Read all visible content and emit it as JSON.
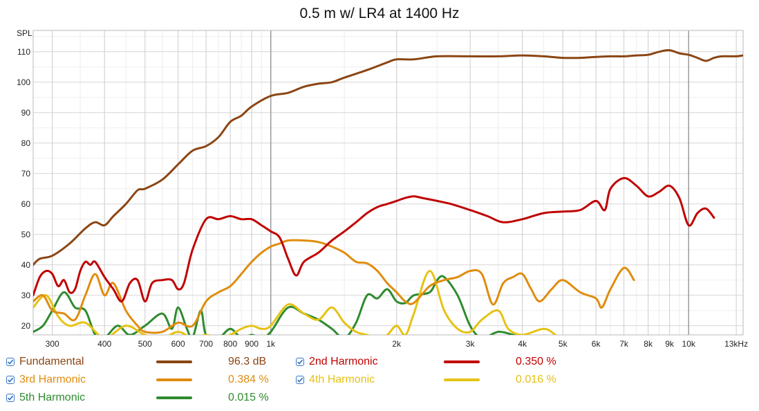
{
  "chart_data": {
    "type": "line",
    "title": "0.5 m w/ LR4 at 1400 Hz",
    "ylabel": "SPL",
    "xlabel": "",
    "x_scale": "log",
    "xlim": [
      270,
      13500
    ],
    "ylim": [
      17,
      117
    ],
    "grid": true,
    "yticks": [
      20,
      30,
      40,
      50,
      60,
      70,
      80,
      90,
      100,
      110
    ],
    "xticks": [
      {
        "v": 300,
        "label": "300"
      },
      {
        "v": 400,
        "label": "400"
      },
      {
        "v": 500,
        "label": "500"
      },
      {
        "v": 600,
        "label": "600"
      },
      {
        "v": 700,
        "label": "700"
      },
      {
        "v": 800,
        "label": "800"
      },
      {
        "v": 900,
        "label": "900"
      },
      {
        "v": 1000,
        "label": "1k"
      },
      {
        "v": 2000,
        "label": "2k"
      },
      {
        "v": 3000,
        "label": "3k"
      },
      {
        "v": 4000,
        "label": "4k"
      },
      {
        "v": 5000,
        "label": "5k"
      },
      {
        "v": 6000,
        "label": "6k"
      },
      {
        "v": 7000,
        "label": "7k"
      },
      {
        "v": 8000,
        "label": "8k"
      },
      {
        "v": 9000,
        "label": "9k"
      },
      {
        "v": 10000,
        "label": "10k"
      },
      {
        "v": 13000,
        "label": "13kHz"
      }
    ],
    "series": [
      {
        "name": "Fundamental",
        "color": "#8b4513",
        "value": "96.3 dB",
        "points": [
          [
            270,
            40
          ],
          [
            280,
            42
          ],
          [
            300,
            43
          ],
          [
            330,
            47
          ],
          [
            360,
            52
          ],
          [
            380,
            54
          ],
          [
            400,
            53
          ],
          [
            420,
            56
          ],
          [
            450,
            60
          ],
          [
            480,
            64.5
          ],
          [
            500,
            65
          ],
          [
            550,
            68
          ],
          [
            600,
            73
          ],
          [
            650,
            77.5
          ],
          [
            700,
            79
          ],
          [
            750,
            82
          ],
          [
            800,
            87
          ],
          [
            850,
            89
          ],
          [
            900,
            92
          ],
          [
            1000,
            95.5
          ],
          [
            1100,
            96.5
          ],
          [
            1200,
            98.5
          ],
          [
            1300,
            99.5
          ],
          [
            1400,
            100
          ],
          [
            1500,
            101.5
          ],
          [
            1700,
            104
          ],
          [
            1900,
            106.5
          ],
          [
            2000,
            107.5
          ],
          [
            2200,
            107.5
          ],
          [
            2500,
            108.5
          ],
          [
            3000,
            108.5
          ],
          [
            3500,
            108.5
          ],
          [
            4000,
            108.8
          ],
          [
            4500,
            108.5
          ],
          [
            5000,
            108
          ],
          [
            5500,
            108
          ],
          [
            6000,
            108.3
          ],
          [
            6500,
            108.5
          ],
          [
            7000,
            108.5
          ],
          [
            7500,
            108.8
          ],
          [
            8000,
            109
          ],
          [
            8500,
            110
          ],
          [
            9000,
            110.5
          ],
          [
            9500,
            109.5
          ],
          [
            10000,
            109
          ],
          [
            10500,
            108
          ],
          [
            11000,
            107
          ],
          [
            11500,
            108
          ],
          [
            12000,
            108.5
          ],
          [
            13000,
            108.5
          ],
          [
            13500,
            108.8
          ]
        ]
      },
      {
        "name": "2nd Harmonic",
        "color": "#c00000",
        "value": "0.350 %",
        "points": [
          [
            270,
            30
          ],
          [
            280,
            36
          ],
          [
            290,
            38
          ],
          [
            300,
            37
          ],
          [
            310,
            33
          ],
          [
            320,
            35
          ],
          [
            330,
            31
          ],
          [
            340,
            32
          ],
          [
            350,
            38
          ],
          [
            360,
            41
          ],
          [
            370,
            40
          ],
          [
            380,
            41
          ],
          [
            400,
            36
          ],
          [
            420,
            32
          ],
          [
            440,
            28
          ],
          [
            460,
            34
          ],
          [
            480,
            35
          ],
          [
            500,
            28
          ],
          [
            520,
            34
          ],
          [
            550,
            35
          ],
          [
            580,
            35
          ],
          [
            600,
            32
          ],
          [
            620,
            34
          ],
          [
            650,
            45
          ],
          [
            700,
            55
          ],
          [
            750,
            55
          ],
          [
            800,
            56
          ],
          [
            850,
            55
          ],
          [
            900,
            55
          ],
          [
            950,
            53
          ],
          [
            1000,
            51
          ],
          [
            1050,
            49
          ],
          [
            1100,
            42
          ],
          [
            1150,
            36.5
          ],
          [
            1200,
            41
          ],
          [
            1300,
            44
          ],
          [
            1400,
            48
          ],
          [
            1500,
            51
          ],
          [
            1600,
            54
          ],
          [
            1700,
            57
          ],
          [
            1800,
            59
          ],
          [
            1900,
            60
          ],
          [
            2000,
            61
          ],
          [
            2100,
            62
          ],
          [
            2200,
            62.5
          ],
          [
            2300,
            62
          ],
          [
            2500,
            61
          ],
          [
            2700,
            60
          ],
          [
            3000,
            58
          ],
          [
            3300,
            56
          ],
          [
            3600,
            54
          ],
          [
            4000,
            55
          ],
          [
            4500,
            57
          ],
          [
            5000,
            57.5
          ],
          [
            5500,
            58
          ],
          [
            6000,
            61
          ],
          [
            6300,
            58
          ],
          [
            6500,
            65
          ],
          [
            7000,
            68.5
          ],
          [
            7500,
            66
          ],
          [
            8000,
            62.5
          ],
          [
            8500,
            64
          ],
          [
            9000,
            66
          ],
          [
            9500,
            62
          ],
          [
            10000,
            53
          ],
          [
            10500,
            57
          ],
          [
            11000,
            58.5
          ],
          [
            11500,
            55.5
          ]
        ]
      },
      {
        "name": "3rd Harmonic",
        "color": "#e08c0e",
        "value": "0.384 %",
        "points": [
          [
            270,
            28
          ],
          [
            285,
            30
          ],
          [
            300,
            25
          ],
          [
            320,
            24
          ],
          [
            340,
            22
          ],
          [
            360,
            30
          ],
          [
            380,
            37
          ],
          [
            400,
            30
          ],
          [
            420,
            34
          ],
          [
            450,
            25
          ],
          [
            480,
            20
          ],
          [
            500,
            18
          ],
          [
            550,
            18
          ],
          [
            600,
            21
          ],
          [
            650,
            20
          ],
          [
            700,
            28
          ],
          [
            750,
            31
          ],
          [
            800,
            33
          ],
          [
            850,
            37
          ],
          [
            900,
            41
          ],
          [
            950,
            44
          ],
          [
            1000,
            46
          ],
          [
            1050,
            47
          ],
          [
            1100,
            48
          ],
          [
            1200,
            48
          ],
          [
            1300,
            47.5
          ],
          [
            1400,
            46
          ],
          [
            1500,
            44
          ],
          [
            1600,
            41
          ],
          [
            1700,
            40.5
          ],
          [
            1800,
            38
          ],
          [
            1900,
            34
          ],
          [
            2000,
            31
          ],
          [
            2100,
            28
          ],
          [
            2200,
            27.5
          ],
          [
            2400,
            33
          ],
          [
            2600,
            35
          ],
          [
            2800,
            36
          ],
          [
            3000,
            38
          ],
          [
            3200,
            37
          ],
          [
            3400,
            27
          ],
          [
            3600,
            34
          ],
          [
            3800,
            36
          ],
          [
            4000,
            37
          ],
          [
            4200,
            32
          ],
          [
            4400,
            28
          ],
          [
            4700,
            32
          ],
          [
            5000,
            35
          ],
          [
            5500,
            31
          ],
          [
            6000,
            29
          ],
          [
            6200,
            26
          ],
          [
            6500,
            32
          ],
          [
            7000,
            39
          ],
          [
            7400,
            35
          ]
        ]
      },
      {
        "name": "4th Harmonic",
        "color": "#e6c214",
        "value": "0.016 %",
        "points": [
          [
            270,
            26
          ],
          [
            290,
            30
          ],
          [
            310,
            23
          ],
          [
            330,
            20
          ],
          [
            360,
            21
          ],
          [
            400,
            16
          ],
          [
            450,
            20
          ],
          [
            500,
            17
          ],
          [
            550,
            16
          ],
          [
            600,
            18
          ],
          [
            650,
            16
          ],
          [
            700,
            17
          ],
          [
            750,
            16
          ],
          [
            800,
            17
          ],
          [
            850,
            19
          ],
          [
            900,
            20
          ],
          [
            950,
            19
          ],
          [
            1000,
            20
          ],
          [
            1100,
            27
          ],
          [
            1200,
            24
          ],
          [
            1300,
            22
          ],
          [
            1400,
            26
          ],
          [
            1500,
            21
          ],
          [
            1600,
            18
          ],
          [
            1700,
            17
          ],
          [
            1800,
            16
          ],
          [
            1900,
            17
          ],
          [
            2000,
            20
          ],
          [
            2100,
            17
          ],
          [
            2200,
            24
          ],
          [
            2400,
            38
          ],
          [
            2600,
            25
          ],
          [
            2800,
            19
          ],
          [
            3000,
            18
          ],
          [
            3200,
            22
          ],
          [
            3500,
            25
          ],
          [
            3700,
            19
          ],
          [
            4000,
            17
          ],
          [
            4500,
            19
          ],
          [
            4800,
            17
          ]
        ]
      },
      {
        "name": "5th Harmonic",
        "color": "#2e8b2e",
        "value": "0.015 %",
        "points": [
          [
            270,
            18
          ],
          [
            285,
            20
          ],
          [
            300,
            25
          ],
          [
            320,
            31
          ],
          [
            340,
            26
          ],
          [
            360,
            25
          ],
          [
            380,
            17
          ],
          [
            400,
            16
          ],
          [
            430,
            20
          ],
          [
            460,
            17
          ],
          [
            500,
            20
          ],
          [
            550,
            24
          ],
          [
            580,
            19
          ],
          [
            600,
            26
          ],
          [
            630,
            19
          ],
          [
            650,
            16
          ],
          [
            680,
            25
          ],
          [
            700,
            17
          ],
          [
            750,
            16
          ],
          [
            800,
            19
          ],
          [
            850,
            16
          ],
          [
            900,
            17
          ],
          [
            950,
            16
          ],
          [
            1000,
            18
          ],
          [
            1100,
            26
          ],
          [
            1200,
            24
          ],
          [
            1300,
            22
          ],
          [
            1400,
            19
          ],
          [
            1500,
            16
          ],
          [
            1600,
            21
          ],
          [
            1700,
            30
          ],
          [
            1800,
            29
          ],
          [
            1900,
            32
          ],
          [
            2000,
            28
          ],
          [
            2100,
            27.5
          ],
          [
            2200,
            30
          ],
          [
            2400,
            31
          ],
          [
            2500,
            35
          ],
          [
            2600,
            36
          ],
          [
            2800,
            30
          ],
          [
            3000,
            20
          ],
          [
            3200,
            16
          ],
          [
            3500,
            18
          ],
          [
            3800,
            17
          ],
          [
            4000,
            16
          ]
        ]
      }
    ]
  }
}
